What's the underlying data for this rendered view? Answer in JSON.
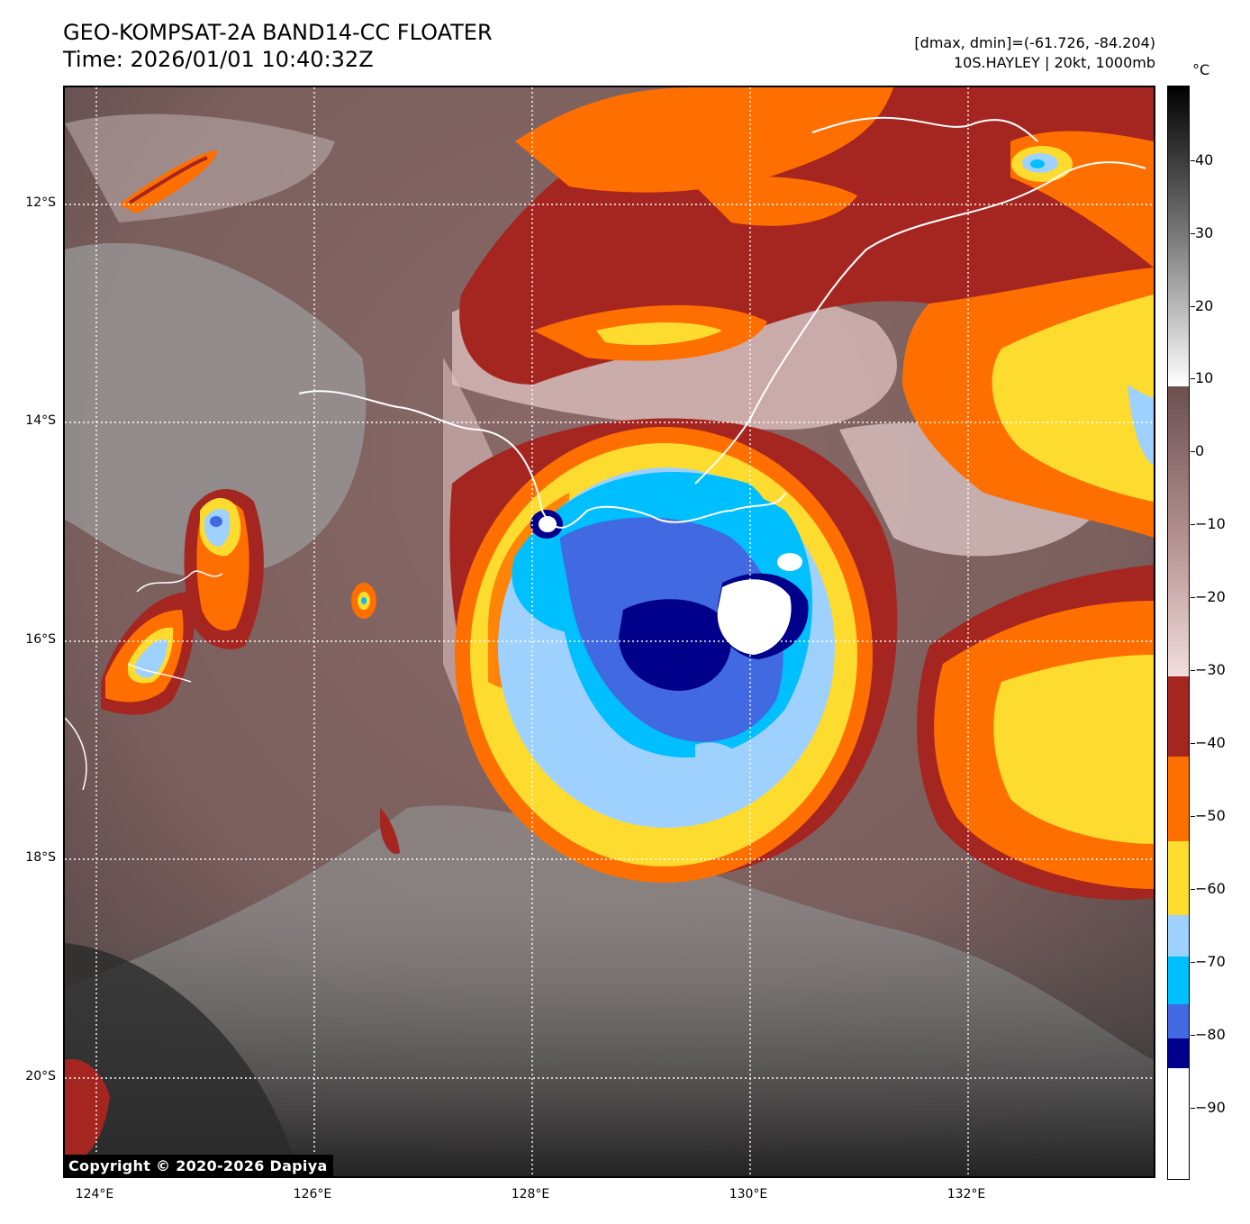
{
  "header": {
    "title_line1": "GEO-KOMPSAT-2A BAND14-CC FLOATER",
    "title_line2": "Time: 2026/01/01 10:40:32Z",
    "meta_line1": "[dmax, dmin]=(-61.726, -84.204)",
    "meta_line2": "10S.HAYLEY | 20kt, 1000mb"
  },
  "map": {
    "copyright": "Copyright © 2020-2026 Dapiya",
    "lat_labels": [
      "12°S",
      "14°S",
      "16°S",
      "18°S",
      "20°S"
    ],
    "lon_labels": [
      "124°E",
      "126°E",
      "128°E",
      "130°E",
      "132°E"
    ],
    "gridlines": "dotted-white"
  },
  "colorbar": {
    "unit": "°C",
    "tick_labels": [
      "40",
      "30",
      "20",
      "10",
      "0",
      "−10",
      "−20",
      "−30",
      "−40",
      "−50",
      "−60",
      "−70",
      "−80",
      "−90"
    ],
    "colors": {
      "grey_warm": "#000000",
      "grey_mid": "#7a7a7a",
      "grey_light": "#ffffff",
      "brown": "#6b4f4f",
      "pink": "#f2dede",
      "dark_red": "#a52620",
      "orange": "#ff6f00",
      "yellow": "#fddc2f",
      "light_blue": "#9fd1ff",
      "cyan": "#00bfff",
      "royal_blue": "#4169e1",
      "navy": "#00008b",
      "white": "#ffffff"
    }
  }
}
